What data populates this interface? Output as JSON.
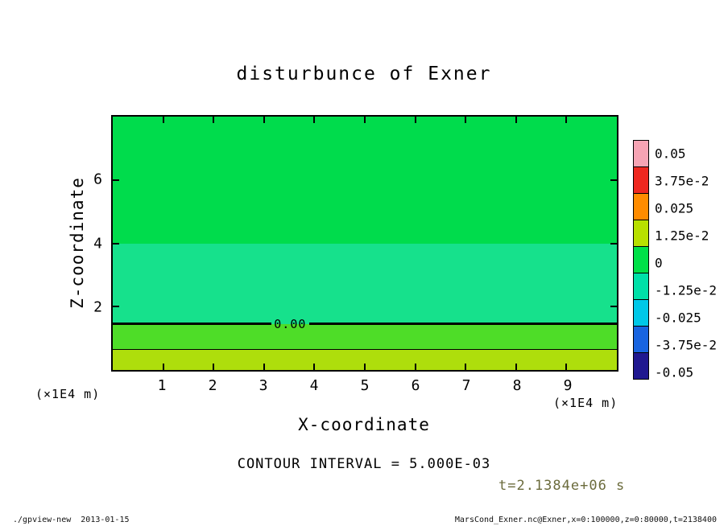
{
  "header": {
    "title": "disturbunce of Exner"
  },
  "axes": {
    "x_label": "X-coordinate",
    "y_label": "Z-coordinate",
    "x_unit_left": "(×1E4 m)",
    "x_unit_right": "(×1E4 m)"
  },
  "annotations": {
    "contour_interval": "CONTOUR INTERVAL = 5.000E-03",
    "time": "t=2.1384e+06 s"
  },
  "footer": {
    "left": "./gpview-new  2013-01-15",
    "right": "MarsCond_Exner.nc@Exner,x=0:100000,z=0:80000,t=2138400"
  },
  "chart_data": {
    "type": "heatmap",
    "title": "disturbunce of Exner",
    "xlabel": "X-coordinate",
    "ylabel": "Z-coordinate",
    "x_unit": "×1E4 m",
    "xlim": [
      0,
      10
    ],
    "ylim": [
      0,
      8
    ],
    "x_ticks": [
      1,
      2,
      3,
      4,
      5,
      6,
      7,
      8,
      9
    ],
    "y_ticks": [
      2,
      4,
      6
    ],
    "contour_interval": 0.005,
    "time_seconds": 2138400,
    "bands": [
      {
        "z_from": 4.0,
        "z_to": 8.0,
        "value": 0.005,
        "color": "#00dc4c"
      },
      {
        "z_from": 1.45,
        "z_to": 4.0,
        "value": -0.005,
        "color": "#16e18c"
      },
      {
        "z_from": 0.64,
        "z_to": 1.45,
        "value": 0.005,
        "color": "#4edd28"
      },
      {
        "z_from": 0.0,
        "z_to": 0.64,
        "value": 0.018,
        "color": "#aede0c"
      }
    ],
    "contours": [
      {
        "z": 1.45,
        "label": "0.00",
        "thickness": 3
      },
      {
        "z": 0.64,
        "label": "",
        "thickness": 1
      }
    ],
    "colorbar": {
      "labels": [
        "0.05",
        "3.75e-2",
        "0.025",
        "1.25e-2",
        "0",
        "-1.25e-2",
        "-0.025",
        "-3.75e-2",
        "-0.05"
      ],
      "colors": [
        "#f6a4b4",
        "#ee2820",
        "#ff8c00",
        "#b8e000",
        "#00e048",
        "#00e0a8",
        "#00c8e8",
        "#1864e0",
        "#201890"
      ]
    }
  }
}
